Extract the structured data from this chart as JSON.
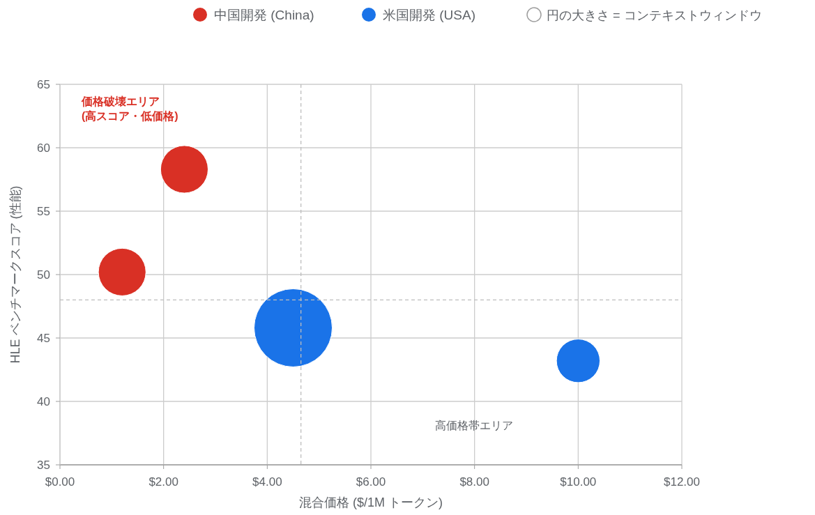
{
  "chart_data": {
    "type": "bubble",
    "xlabel": "混合価格 ($/1M トークン)",
    "ylabel": "HLE ベンチマークスコア (性能)",
    "series": [
      {
        "name": "中国開発 (China)",
        "color": "#d93025",
        "x": [
          1.2,
          2.4
        ],
        "values": [
          50.2,
          58.3
        ],
        "sizes": [
          0.37,
          0.37
        ]
      },
      {
        "name": "米国開発 (USA)",
        "color": "#1a73e8",
        "x": [
          4.5,
          10
        ],
        "values": [
          45.8,
          43.2
        ],
        "sizes": [
          1,
          0.31
        ]
      }
    ],
    "xlim": [
      0,
      12
    ],
    "xticks": [
      {
        "value": 0,
        "label": "$0.00"
      },
      {
        "value": 2,
        "label": "$2.00"
      },
      {
        "value": 4,
        "label": "$4.00"
      },
      {
        "value": 6,
        "label": "$6.00"
      },
      {
        "value": 8,
        "label": "$8.00"
      },
      {
        "value": 10,
        "label": "$10.00"
      },
      {
        "value": 12,
        "label": "$12.00"
      }
    ],
    "ylim": [
      35,
      65
    ],
    "yticks": [
      35,
      40,
      45,
      50,
      55,
      60,
      65
    ],
    "grid": true,
    "legend": "top",
    "ref_lines": [
      {
        "axis": "x",
        "value": 4.65,
        "color": "#bdbdbd",
        "line_style": "dashed"
      },
      {
        "axis": "y",
        "value": 48,
        "color": "#bdbdbd",
        "line_style": "dashed"
      }
    ],
    "annotations": [
      "円の大きさ = コンテキストウィンドウ",
      "価格破壊エリア\n(高スコア・低価格)",
      "高価格帯エリア"
    ]
  }
}
